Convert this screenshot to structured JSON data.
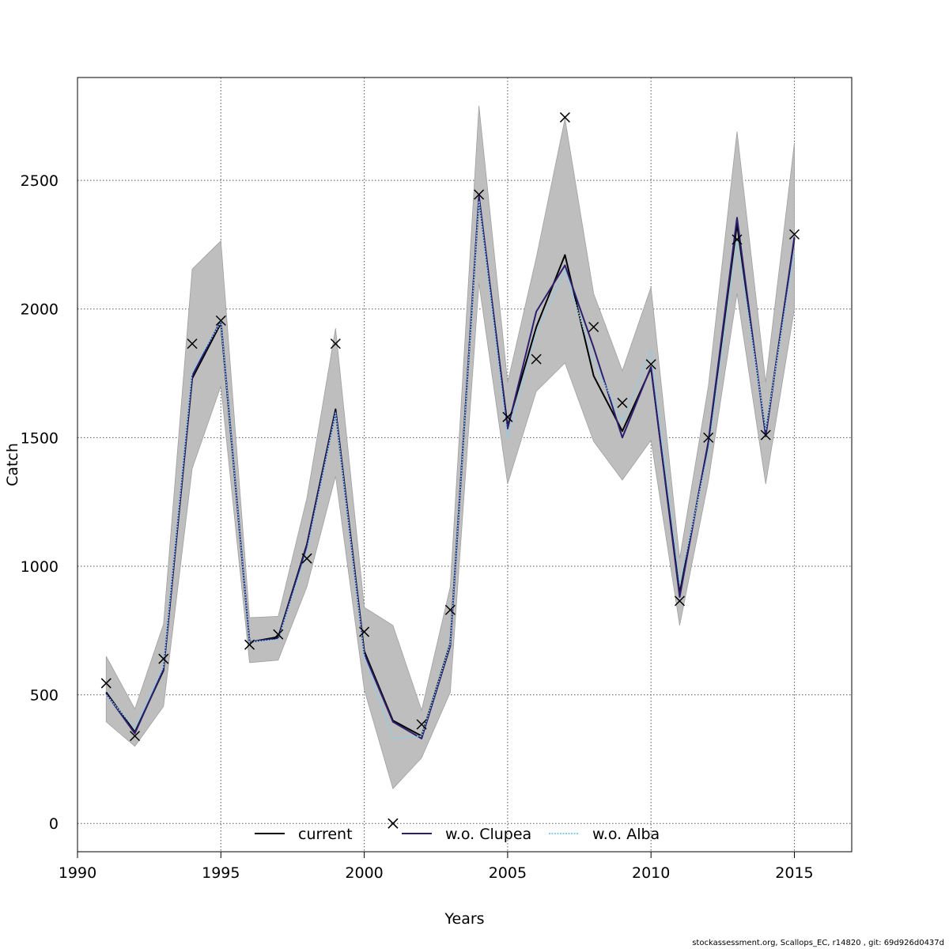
{
  "chart_data": {
    "type": "line",
    "title": "",
    "xlabel": "Years",
    "ylabel": "Catch",
    "xlim": [
      1990,
      2017
    ],
    "ylim": [
      -110,
      2900
    ],
    "x_ticks": [
      1990,
      1995,
      2000,
      2005,
      2010,
      2015
    ],
    "y_ticks": [
      0,
      500,
      1000,
      1500,
      2000,
      2500
    ],
    "grid": true,
    "years": [
      1991,
      1992,
      1993,
      1994,
      1995,
      1996,
      1997,
      1998,
      1999,
      2000,
      2001,
      2002,
      2003,
      2004,
      2005,
      2006,
      2007,
      2008,
      2009,
      2010,
      2011,
      2012,
      2013,
      2014,
      2015
    ],
    "band": {
      "name": "confidence interval",
      "color": "#bebebe",
      "lower": [
        395,
        300,
        455,
        1380,
        1700,
        625,
        635,
        920,
        1350,
        520,
        135,
        255,
        510,
        2100,
        1320,
        1680,
        1790,
        1485,
        1335,
        1490,
        770,
        1330,
        2060,
        1320,
        2000
      ],
      "upper": [
        650,
        445,
        775,
        2155,
        2265,
        800,
        805,
        1265,
        1925,
        840,
        770,
        440,
        920,
        2790,
        1715,
        2200,
        2740,
        2060,
        1760,
        2085,
        1030,
        1700,
        2690,
        1715,
        2645
      ]
    },
    "observed": {
      "name": "observed catch",
      "marker": "x",
      "values": [
        545,
        340,
        640,
        1865,
        1955,
        695,
        735,
        1030,
        1865,
        745,
        0,
        385,
        830,
        2445,
        1580,
        1805,
        2745,
        1930,
        1635,
        1785,
        865,
        1500,
        2270,
        1510,
        2290
      ]
    },
    "series": [
      {
        "name": "current",
        "color": "#000000",
        "style": "solid",
        "values": [
          510,
          355,
          595,
          1730,
          1945,
          705,
          725,
          1085,
          1610,
          670,
          400,
          340,
          700,
          2430,
          1545,
          1930,
          2210,
          1740,
          1525,
          1770,
          895,
          1480,
          2330,
          1515,
          2275
        ]
      },
      {
        "name": "w.o. Clupea",
        "color": "#2d1e6e",
        "style": "solid",
        "values": [
          505,
          350,
          600,
          1740,
          1955,
          705,
          720,
          1080,
          1600,
          660,
          395,
          330,
          690,
          2440,
          1535,
          1990,
          2170,
          1850,
          1500,
          1775,
          880,
          1485,
          2355,
          1505,
          2280
        ]
      },
      {
        "name": "w.o. Alba",
        "color": "#87ceeb",
        "style": "dotted",
        "values": [
          500,
          370,
          610,
          1760,
          1950,
          705,
          715,
          1060,
          1595,
          650,
          330,
          340,
          700,
          2420,
          1500,
          1910,
          2150,
          1800,
          1560,
          1840,
          935,
          1445,
          2270,
          1530,
          2225
        ]
      }
    ],
    "legend": {
      "position": "bottom",
      "entries": [
        "current",
        "",
        "w.o. Clupea",
        "w.o. Alba"
      ]
    }
  },
  "footer": "stockassessment.org, Scallops_EC, r14820 , git: 69d926d0437d"
}
